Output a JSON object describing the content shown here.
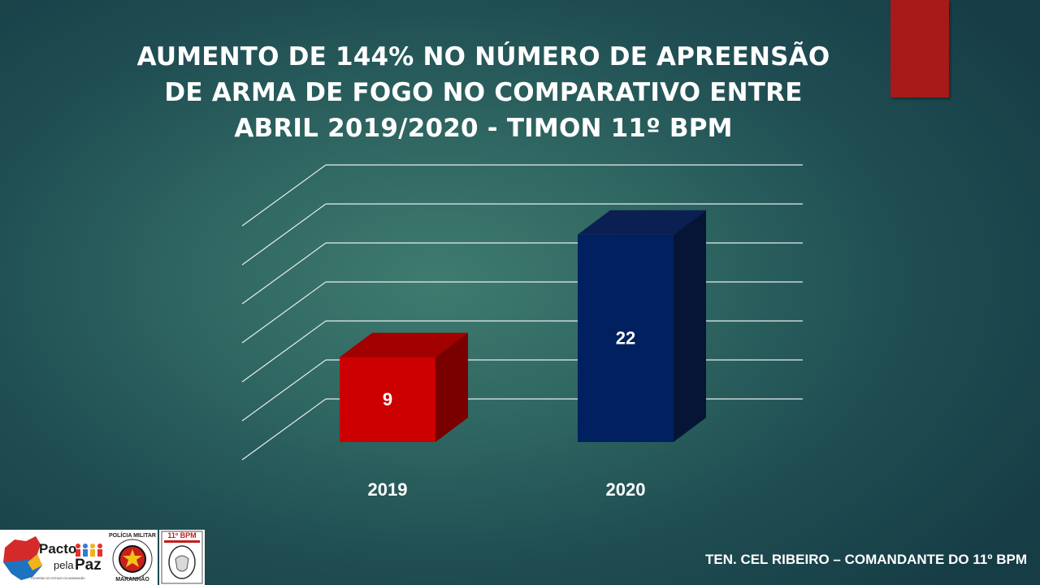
{
  "slide": {
    "title_lines": [
      "AUMENTO DE 144% NO NÚMERO DE APREENSÃO",
      "DE ARMA DE FOGO NO COMPARATIVO ENTRE",
      "ABRIL 2019/2020 - TIMON 11º BPM"
    ],
    "footer": "TEN. CEL RIBEIRO – COMANDANTE DO 11º BPM",
    "accent_color": "#a8191a"
  },
  "logos": {
    "pacto_top": "Pacto",
    "pacto_pela": "pela",
    "pacto_paz": "Paz",
    "pacto_caption": "GOVERNO DO ESTADO DO MARANHÃO",
    "pm_top": "POLÍCIA MILITAR",
    "pm_bottom": "MARANHÃO",
    "bpm_label": "11º BPM"
  },
  "chart_data": {
    "type": "bar",
    "style": "3d-column",
    "categories": [
      "2019",
      "2020"
    ],
    "values": [
      9,
      22
    ],
    "bar_colors": [
      "#cc0000",
      "#002060"
    ],
    "data_labels": [
      "9",
      "22"
    ],
    "ylim": [
      0,
      30
    ],
    "gridlines": true,
    "grid_step": 5,
    "legend": "none"
  }
}
